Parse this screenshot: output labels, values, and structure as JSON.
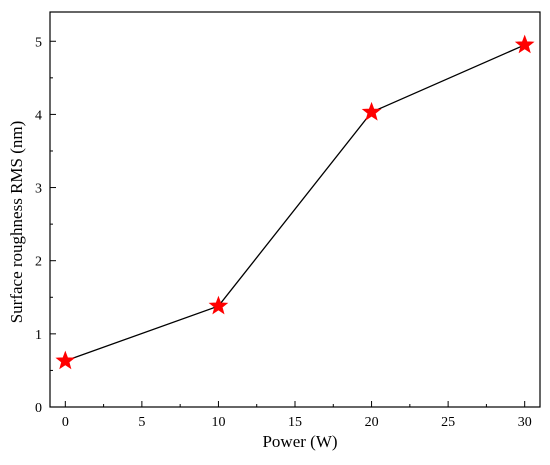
{
  "chart_data": {
    "type": "line",
    "title": "",
    "xlabel": "Power (W)",
    "ylabel": "Surface roughness RMS (nm)",
    "xlim": [
      -1,
      31
    ],
    "ylim": [
      0,
      5.4
    ],
    "xticks": [
      0,
      5,
      10,
      15,
      20,
      25,
      30
    ],
    "yticks": [
      0,
      1,
      2,
      3,
      4,
      5
    ],
    "grid": false,
    "series": [
      {
        "x": [
          0,
          10,
          20,
          30
        ],
        "y": [
          0.63,
          1.38,
          4.03,
          4.95
        ],
        "marker": "star",
        "marker_color": "#ff0000",
        "line_color": "#000000"
      }
    ]
  }
}
